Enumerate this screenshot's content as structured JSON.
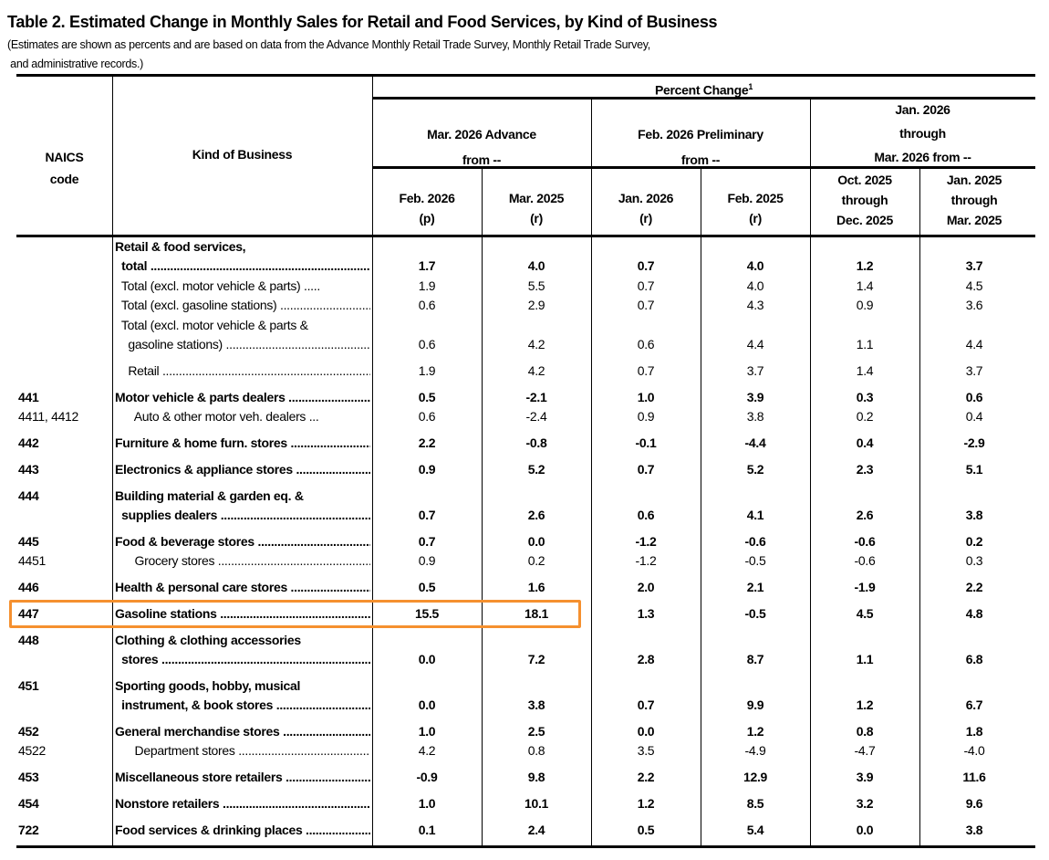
{
  "title": "Table 2.  Estimated Change in Monthly Sales for Retail and Food Services, by Kind of Business",
  "subtitle_line1": "(Estimates are shown as percents and are based on data from the Advance Monthly Retail Trade Survey,  Monthly Retail Trade Survey,",
  "subtitle_line2": " and administrative records.)",
  "header": {
    "naics": [
      "NAICS",
      "code"
    ],
    "kind": "Kind of Business",
    "percent_change": "Percent Change",
    "footnote_mark": "1",
    "groups": [
      [
        "Mar. 2026 Advance",
        "from --"
      ],
      [
        "Feb. 2026 Preliminary",
        "from --"
      ],
      [
        "Jan. 2026",
        "through",
        "Mar. 2026 from --"
      ]
    ],
    "columns": [
      [
        "Feb. 2026",
        "(p)"
      ],
      [
        "Mar. 2025",
        "(r)"
      ],
      [
        "Jan. 2026",
        "(r)"
      ],
      [
        "Feb. 2025",
        "(r)"
      ],
      [
        "Oct. 2025",
        "through",
        "Dec. 2025"
      ],
      [
        "Jan. 2025",
        "through",
        "Mar. 2025"
      ]
    ]
  },
  "highlight_color": "#f5902f",
  "rows": [
    {
      "code": "",
      "lines": [
        "Retail & food services,",
        "  total"
      ],
      "bold": true,
      "values": [
        "1.7",
        "4.0",
        "0.7",
        "4.0",
        "1.2",
        "3.7"
      ]
    },
    {
      "code": "",
      "lines": [
        "  Total (excl. motor vehicle & parts) ....."
      ],
      "bold": false,
      "values": [
        "1.9",
        "5.5",
        "0.7",
        "4.0",
        "1.4",
        "4.5"
      ]
    },
    {
      "code": "",
      "lines": [
        "  Total (excl. gasoline stations)"
      ],
      "bold": false,
      "values": [
        "0.6",
        "2.9",
        "0.7",
        "4.3",
        "0.9",
        "3.6"
      ]
    },
    {
      "code": "",
      "lines": [
        "  Total (excl. motor vehicle & parts &",
        "    gasoline stations)"
      ],
      "bold": false,
      "values": [
        "0.6",
        "4.2",
        "0.6",
        "4.4",
        "1.1",
        "4.4"
      ]
    },
    {
      "code": "",
      "lines": [
        "    Retail"
      ],
      "bold": false,
      "values": [
        "1.9",
        "4.2",
        "0.7",
        "3.7",
        "1.4",
        "3.7"
      ]
    },
    {
      "code": "441",
      "lines": [
        "Motor vehicle & parts dealers"
      ],
      "bold": true,
      "values": [
        "0.5",
        "-2.1",
        "1.0",
        "3.9",
        "0.3",
        "0.6"
      ]
    },
    {
      "code": "4411, 4412",
      "lines": [
        "      Auto & other motor veh. dealers ..."
      ],
      "bold": false,
      "values": [
        "0.6",
        "-2.4",
        "0.9",
        "3.8",
        "0.2",
        "0.4"
      ]
    },
    {
      "code": "442",
      "lines": [
        "Furniture & home furn. stores"
      ],
      "bold": true,
      "values": [
        "2.2",
        "-0.8",
        "-0.1",
        "-4.4",
        "0.4",
        "-2.9"
      ]
    },
    {
      "code": "443",
      "lines": [
        "Electronics & appliance stores"
      ],
      "bold": true,
      "values": [
        "0.9",
        "5.2",
        "0.7",
        "5.2",
        "2.3",
        "5.1"
      ]
    },
    {
      "code": "444",
      "lines": [
        "Building material & garden eq. &",
        "  supplies dealers"
      ],
      "bold": true,
      "values": [
        "0.7",
        "2.6",
        "0.6",
        "4.1",
        "2.6",
        "3.8"
      ]
    },
    {
      "code": "445",
      "lines": [
        "Food & beverage stores"
      ],
      "bold": true,
      "values": [
        "0.7",
        "0.0",
        "-1.2",
        "-0.6",
        "-0.6",
        "0.2"
      ]
    },
    {
      "code": "4451",
      "lines": [
        "      Grocery stores"
      ],
      "bold": false,
      "values": [
        "0.9",
        "0.2",
        "-1.2",
        "-0.5",
        "-0.6",
        "0.3"
      ]
    },
    {
      "code": "446",
      "lines": [
        "Health & personal care stores"
      ],
      "bold": true,
      "values": [
        "0.5",
        "1.6",
        "2.0",
        "2.1",
        "-1.9",
        "2.2"
      ]
    },
    {
      "code": "447",
      "lines": [
        "Gasoline stations"
      ],
      "bold": true,
      "values": [
        "15.5",
        "18.1",
        "1.3",
        "-0.5",
        "4.5",
        "4.8"
      ]
    },
    {
      "code": "448",
      "lines": [
        "Clothing & clothing accessories",
        "  stores"
      ],
      "bold": true,
      "values": [
        "0.0",
        "7.2",
        "2.8",
        "8.7",
        "1.1",
        "6.8"
      ]
    },
    {
      "code": "451",
      "lines": [
        "Sporting goods, hobby, musical",
        "  instrument, & book stores"
      ],
      "bold": true,
      "values": [
        "0.0",
        "3.8",
        "0.7",
        "9.9",
        "1.2",
        "6.7"
      ]
    },
    {
      "code": "452",
      "lines": [
        "General merchandise stores"
      ],
      "bold": true,
      "values": [
        "1.0",
        "2.5",
        "0.0",
        "1.2",
        "0.8",
        "1.8"
      ]
    },
    {
      "code": "4522",
      "lines": [
        "      Department stores"
      ],
      "bold": false,
      "values": [
        "4.2",
        "0.8",
        "3.5",
        "-4.9",
        "-4.7",
        "-4.0"
      ]
    },
    {
      "code": "453",
      "lines": [
        "Miscellaneous store retailers"
      ],
      "bold": true,
      "values": [
        "-0.9",
        "9.8",
        "2.2",
        "12.9",
        "3.9",
        "11.6"
      ]
    },
    {
      "code": "454",
      "lines": [
        "Nonstore retailers"
      ],
      "bold": true,
      "values": [
        "1.0",
        "10.1",
        "1.2",
        "8.5",
        "3.2",
        "9.6"
      ]
    },
    {
      "code": "722",
      "lines": [
        "Food services & drinking places"
      ],
      "bold": true,
      "values": [
        "0.1",
        "2.4",
        "0.5",
        "5.4",
        "0.0",
        "3.8"
      ]
    }
  ]
}
